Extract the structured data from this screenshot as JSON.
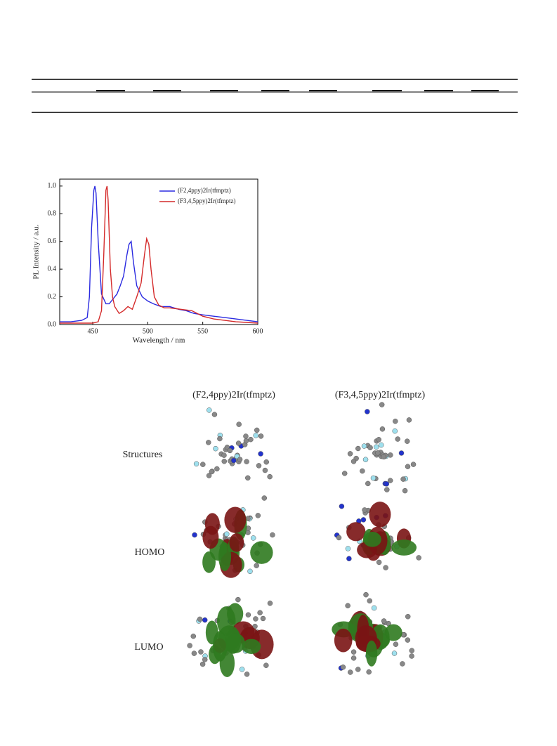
{
  "chart_data": {
    "type": "line",
    "xlabel": "Wavelength / nm",
    "ylabel": "PL Intensity / a.u.",
    "xlim": [
      420,
      600
    ],
    "xticks": [
      450,
      500,
      550,
      600
    ],
    "ylim": [
      0,
      1.05
    ],
    "yticks": [
      {
        "value": 0,
        "label": "0.0"
      },
      0.2,
      0.4,
      0.6,
      0.8,
      {
        "value": 1,
        "label": "1.0"
      }
    ],
    "legend": "upper right",
    "series": [
      {
        "name": "(F2,4ppy)2Ir(tfmptz)",
        "color": "#2a2ae0",
        "x": [
          420,
          430,
          440,
          445,
          447,
          449,
          451,
          452,
          453,
          455,
          458,
          462,
          465,
          468,
          472,
          475,
          478,
          481,
          483,
          485,
          487,
          490,
          495,
          500,
          505,
          512,
          520,
          528,
          535,
          542,
          550,
          560,
          570,
          580,
          590,
          600
        ],
        "values": [
          0.02,
          0.02,
          0.03,
          0.05,
          0.2,
          0.7,
          0.97,
          1.0,
          0.95,
          0.6,
          0.22,
          0.15,
          0.15,
          0.18,
          0.22,
          0.28,
          0.35,
          0.5,
          0.58,
          0.6,
          0.45,
          0.28,
          0.2,
          0.17,
          0.15,
          0.13,
          0.13,
          0.11,
          0.1,
          0.08,
          0.07,
          0.06,
          0.05,
          0.04,
          0.03,
          0.02
        ]
      },
      {
        "name": "(F3,4,5ppy)2Ir(tfmptz)",
        "color": "#d42a2a",
        "x": [
          420,
          430,
          440,
          450,
          455,
          458,
          460,
          462,
          463,
          464,
          466,
          468,
          470,
          474,
          478,
          482,
          486,
          490,
          494,
          497,
          499,
          501,
          503,
          506,
          510,
          515,
          520,
          530,
          540,
          550,
          560,
          570,
          580,
          590,
          600
        ],
        "values": [
          0.01,
          0.01,
          0.01,
          0.01,
          0.02,
          0.1,
          0.5,
          0.97,
          1.0,
          0.9,
          0.4,
          0.2,
          0.13,
          0.08,
          0.1,
          0.13,
          0.11,
          0.2,
          0.3,
          0.5,
          0.62,
          0.58,
          0.4,
          0.2,
          0.14,
          0.12,
          0.12,
          0.11,
          0.1,
          0.06,
          0.04,
          0.03,
          0.02,
          0.015,
          0.01
        ]
      }
    ]
  },
  "figure": {
    "columns": [
      "(F2,4ppy)2Ir(tfmptz)",
      "(F3,4,5ppy)2Ir(tfmptz)"
    ],
    "rows": [
      "Structures",
      "HOMO",
      "LUMO"
    ]
  }
}
